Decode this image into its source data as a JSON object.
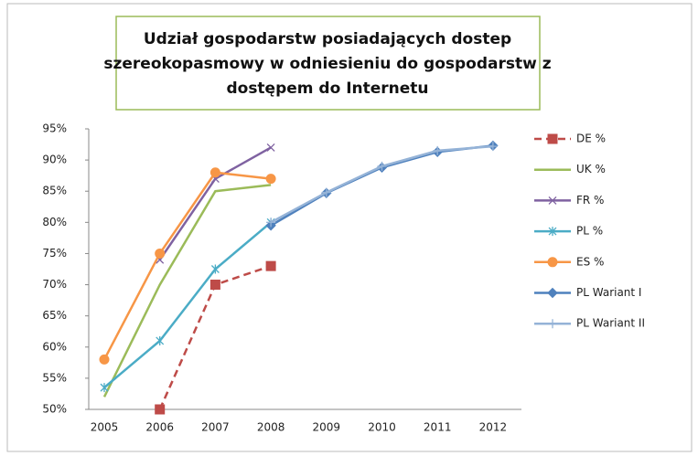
{
  "chart_data": {
    "type": "line",
    "title": [
      "Udział gospodarstw posiadających dostep",
      "szereokopasmowy w odniesieniu do gospodarstw z",
      "dostępem do Internetu"
    ],
    "categories": [
      "2005",
      "2006",
      "2007",
      "2008",
      "2009",
      "2010",
      "2011",
      "2012"
    ],
    "ylim": [
      50,
      95
    ],
    "yticks": [
      {
        "value": 50,
        "label": "50%"
      },
      {
        "value": 55,
        "label": "55%"
      },
      {
        "value": 60,
        "label": "60%"
      },
      {
        "value": 65,
        "label": "65%"
      },
      {
        "value": 70,
        "label": "70%"
      },
      {
        "value": 75,
        "label": "75%"
      },
      {
        "value": 80,
        "label": "80%"
      },
      {
        "value": 85,
        "label": "85%"
      },
      {
        "value": 90,
        "label": "90%"
      },
      {
        "value": 95,
        "label": "95%"
      }
    ],
    "grid": false,
    "legend": "right",
    "series": [
      {
        "name": "DE %",
        "color": "#be4b48",
        "marker": "square",
        "dashed": true,
        "values": [
          null,
          50,
          70,
          73,
          null,
          null,
          null,
          null
        ]
      },
      {
        "name": "UK %",
        "color": "#9bbb59",
        "marker": "none",
        "values": [
          52,
          70,
          85,
          86,
          null,
          null,
          null,
          null
        ]
      },
      {
        "name": "FR %",
        "color": "#7f62a1",
        "marker": "x",
        "values": [
          null,
          74,
          87,
          92,
          null,
          null,
          null,
          null
        ]
      },
      {
        "name": "PL %",
        "color": "#4bacc6",
        "marker": "star",
        "values": [
          53.5,
          61,
          72.5,
          80,
          null,
          null,
          null,
          null
        ]
      },
      {
        "name": "ES  %",
        "color": "#f79646",
        "marker": "circle",
        "values": [
          58,
          75,
          88,
          87,
          null,
          null,
          null,
          null
        ]
      },
      {
        "name": "PL Wariant I",
        "color": "#4f81bd",
        "marker": "diamond",
        "values": [
          null,
          null,
          null,
          79.5,
          84.7,
          88.8,
          91.3,
          92.3
        ]
      },
      {
        "name": "PL Wariant II",
        "color": "#95b3d7",
        "marker": "plus",
        "values": [
          null,
          null,
          null,
          80,
          84.8,
          89,
          91.5,
          92.2
        ]
      }
    ]
  }
}
